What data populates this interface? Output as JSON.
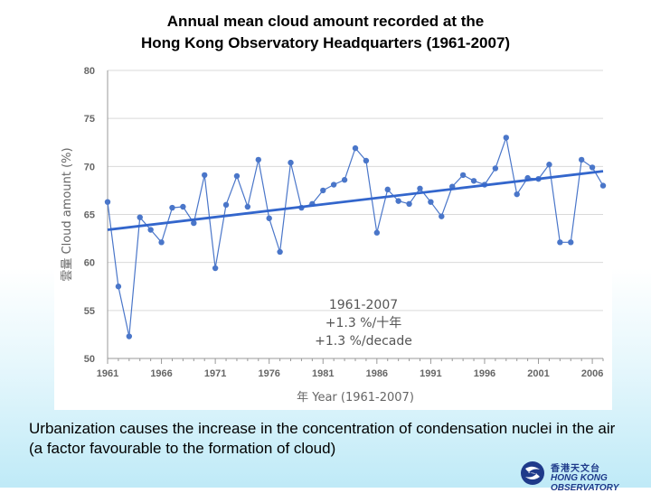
{
  "slide": {
    "title_line1": "Annual mean cloud amount recorded at the",
    "title_line2": "Hong Kong Observatory Headquarters (1961-2007)",
    "caption": "Urbanization causes the increase in the concentration of condensation nuclei in the air (a factor favourable to the formation of cloud)"
  },
  "logo": {
    "chinese": "香港天文台",
    "english": "HONG KONG OBSERVATORY",
    "color": "#1e3a8a"
  },
  "chart_data": {
    "type": "line",
    "xlabel": "年 Year (1961-2007)",
    "ylabel": "雲量 Cloud amount (%)",
    "xlim": [
      1961,
      2007
    ],
    "ylim": [
      50,
      80
    ],
    "x_ticks": [
      1961,
      1966,
      1971,
      1976,
      1981,
      1986,
      1991,
      1996,
      2001,
      2006
    ],
    "y_ticks": [
      50,
      55,
      60,
      65,
      70,
      75,
      80
    ],
    "grid": "horizontal",
    "x": [
      1961,
      1962,
      1963,
      1964,
      1965,
      1966,
      1967,
      1968,
      1969,
      1970,
      1971,
      1972,
      1973,
      1974,
      1975,
      1976,
      1977,
      1978,
      1979,
      1980,
      1981,
      1982,
      1983,
      1984,
      1985,
      1986,
      1987,
      1988,
      1989,
      1990,
      1991,
      1992,
      1993,
      1994,
      1995,
      1996,
      1997,
      1998,
      1999,
      2000,
      2001,
      2002,
      2003,
      2004,
      2005,
      2006,
      2007
    ],
    "series": [
      {
        "values": [
          66.3,
          57.5,
          52.3,
          64.7,
          63.4,
          62.1,
          65.7,
          65.8,
          64.1,
          69.1,
          59.4,
          66.0,
          69.0,
          65.8,
          70.7,
          64.6,
          61.1,
          70.4,
          65.7,
          66.1,
          67.5,
          68.1,
          68.6,
          71.9,
          70.6,
          63.1,
          67.6,
          66.4,
          66.1,
          67.7,
          66.3,
          64.8,
          67.9,
          69.1,
          68.5,
          68.1,
          69.8,
          73.0,
          67.1,
          68.8,
          68.7,
          70.2,
          62.1,
          62.1,
          70.7,
          69.9,
          68.0
        ],
        "color": "#4a76c9"
      }
    ],
    "trend": {
      "start": [
        1961,
        63.4
      ],
      "end": [
        2007,
        69.5
      ],
      "color": "#3366cc"
    },
    "annotation_lines": [
      "1961-2007",
      "+1.3 %/十年",
      "+1.3 %/decade"
    ]
  }
}
